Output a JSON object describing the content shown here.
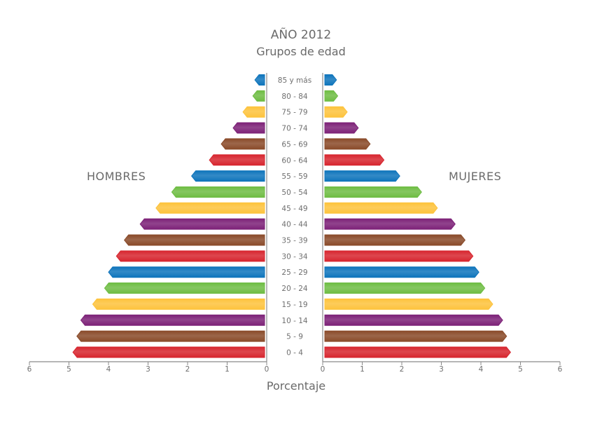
{
  "title": "AÑO 2012",
  "subtitle": "Grupos de edad",
  "left_label": "HOMBRES",
  "right_label": "MUJERES",
  "chart_data": {
    "type": "bar",
    "orientation": "horizontal-population-pyramid",
    "title": "AÑO 2012",
    "subtitle": "Grupos de edad",
    "xlabel": "Porcentaje",
    "xlim": [
      0,
      6
    ],
    "x_ticks_left": [
      "6",
      "5",
      "4",
      "3",
      "2",
      "1",
      "0"
    ],
    "x_ticks_right": [
      "0",
      "1",
      "2",
      "3",
      "4",
      "5",
      "6"
    ],
    "categories": [
      "85 y más",
      "80 - 84",
      "75 - 79",
      "70 - 74",
      "65 - 69",
      "60 - 64",
      "55 - 59",
      "50 - 54",
      "45 - 49",
      "40 - 44",
      "35 - 39",
      "30 - 34",
      "25 - 29",
      "20 - 24",
      "15 - 19",
      "10 - 14",
      "5 - 9",
      "0 - 4"
    ],
    "series": [
      {
        "name": "HOMBRES",
        "side": "left",
        "values": [
          0.3,
          0.35,
          0.6,
          0.85,
          1.15,
          1.45,
          1.9,
          2.4,
          2.8,
          3.2,
          3.6,
          3.8,
          4.0,
          4.1,
          4.4,
          4.7,
          4.8,
          4.9
        ]
      },
      {
        "name": "MUJERES",
        "side": "right",
        "values": [
          0.35,
          0.38,
          0.62,
          0.9,
          1.2,
          1.55,
          1.95,
          2.5,
          2.9,
          3.35,
          3.6,
          3.8,
          3.95,
          4.1,
          4.3,
          4.55,
          4.65,
          4.75
        ]
      }
    ],
    "colors": [
      "#d7262f",
      "#8a4b2a",
      "#7d2278",
      "#fdc33d",
      "#6fbd44",
      "#0f75bc"
    ]
  }
}
